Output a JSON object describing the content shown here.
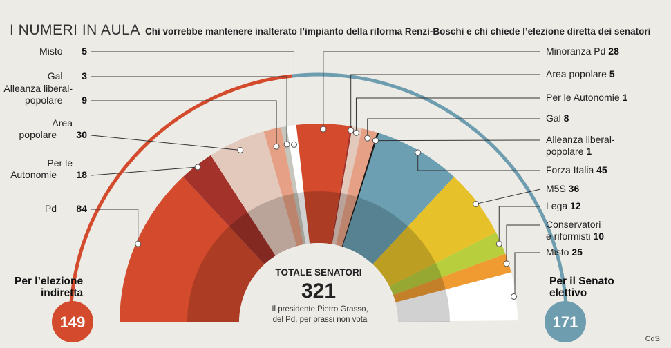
{
  "header": {
    "title": "I NUMERI IN AULA",
    "subtitle": "Chi vorrebbe mantenere inalterato l’impianto della riforma Renzi-Boschi e chi chiede l’elezione diretta dei senatori"
  },
  "center": {
    "label": "TOTALE SENATORI",
    "total": "321",
    "note_line1": "Il presidente Pietro Grasso,",
    "note_line2": "del Pd, per prassi non vota"
  },
  "left_group": {
    "label_line1": "Per l’elezione",
    "label_line2": "indiretta",
    "total": "149",
    "color": "#d34a2c"
  },
  "right_group": {
    "label_line1": "Per il Senato",
    "label_line2": "elettivo",
    "total": "171",
    "color": "#6f9db0"
  },
  "credit": "CdS",
  "chart_data": {
    "type": "pie",
    "subtype": "semicircle-parliament",
    "total": 321,
    "legend_placement": "around-arc",
    "series": [
      {
        "group": "indiretta",
        "name": "Pd",
        "value": 84,
        "color": "#d34a2c"
      },
      {
        "group": "indiretta",
        "name": "Per le Autonomie",
        "value": 18,
        "color": "#a2322a"
      },
      {
        "group": "indiretta",
        "name": "Area popolare",
        "value": 30,
        "color": "#e3c8bc"
      },
      {
        "group": "indiretta",
        "name": "Alleanza liberal-popolare",
        "value": 9,
        "color": "#e6a086"
      },
      {
        "group": "indiretta",
        "name": "Gal",
        "value": 3,
        "color": "#c6c6be"
      },
      {
        "group": "indiretta",
        "name": "Misto",
        "value": 5,
        "color": "#ffffff"
      },
      {
        "group": "elettivo",
        "name": "Minoranza Pd",
        "value": 28,
        "color": "#d34a2c"
      },
      {
        "group": "elettivo",
        "name": "Per le Autonomie",
        "value": 1,
        "color": "#a2322a"
      },
      {
        "group": "elettivo",
        "name": "Area popolare",
        "value": 5,
        "color": "#e3c8bc"
      },
      {
        "group": "elettivo",
        "name": "Gal",
        "value": 8,
        "color": "#e6a086"
      },
      {
        "group": "elettivo",
        "name": "Alleanza liberal-popolare",
        "value": 1,
        "color": "#1a1a1a"
      },
      {
        "group": "elettivo",
        "name": "Forza Italia",
        "value": 45,
        "color": "#6b9fb1"
      },
      {
        "group": "elettivo",
        "name": "M5S",
        "value": 36,
        "color": "#e6c12a"
      },
      {
        "group": "elettivo",
        "name": "Lega",
        "value": 12,
        "color": "#b8ce3c"
      },
      {
        "group": "elettivo",
        "name": "Conservatori e riformisti",
        "value": 10,
        "color": "#ef9b32"
      },
      {
        "group": "elettivo",
        "name": "Misto",
        "value": 25,
        "color": "#ffffff"
      }
    ],
    "left_labels": [
      {
        "lines": [
          "Misto"
        ],
        "value": "5"
      },
      {
        "lines": [
          "Gal"
        ],
        "value": "3"
      },
      {
        "lines": [
          "Alleanza liberal-",
          "popolare"
        ],
        "value": "9"
      },
      {
        "lines": [
          "Area",
          "popolare"
        ],
        "value": "30"
      },
      {
        "lines": [
          "Per le",
          "Autonomie"
        ],
        "value": "18"
      },
      {
        "lines": [
          "Pd"
        ],
        "value": "84"
      }
    ],
    "right_labels": [
      {
        "lines": [
          "Minoranza Pd"
        ],
        "value": "28"
      },
      {
        "lines": [
          "Area popolare"
        ],
        "value": "5"
      },
      {
        "lines": [
          "Per le Autonomie"
        ],
        "value": "1"
      },
      {
        "lines": [
          "Gal"
        ],
        "value": "8"
      },
      {
        "lines": [
          "Alleanza liberal-",
          "popolare"
        ],
        "value": "1"
      },
      {
        "lines": [
          "Forza Italia"
        ],
        "value": "45"
      },
      {
        "lines": [
          "M5S"
        ],
        "value": "36"
      },
      {
        "lines": [
          "Lega"
        ],
        "value": "12"
      },
      {
        "lines": [
          "Conservatori",
          "e riformisti"
        ],
        "value": "10"
      },
      {
        "lines": [
          "Misto"
        ],
        "value": "25"
      }
    ]
  }
}
